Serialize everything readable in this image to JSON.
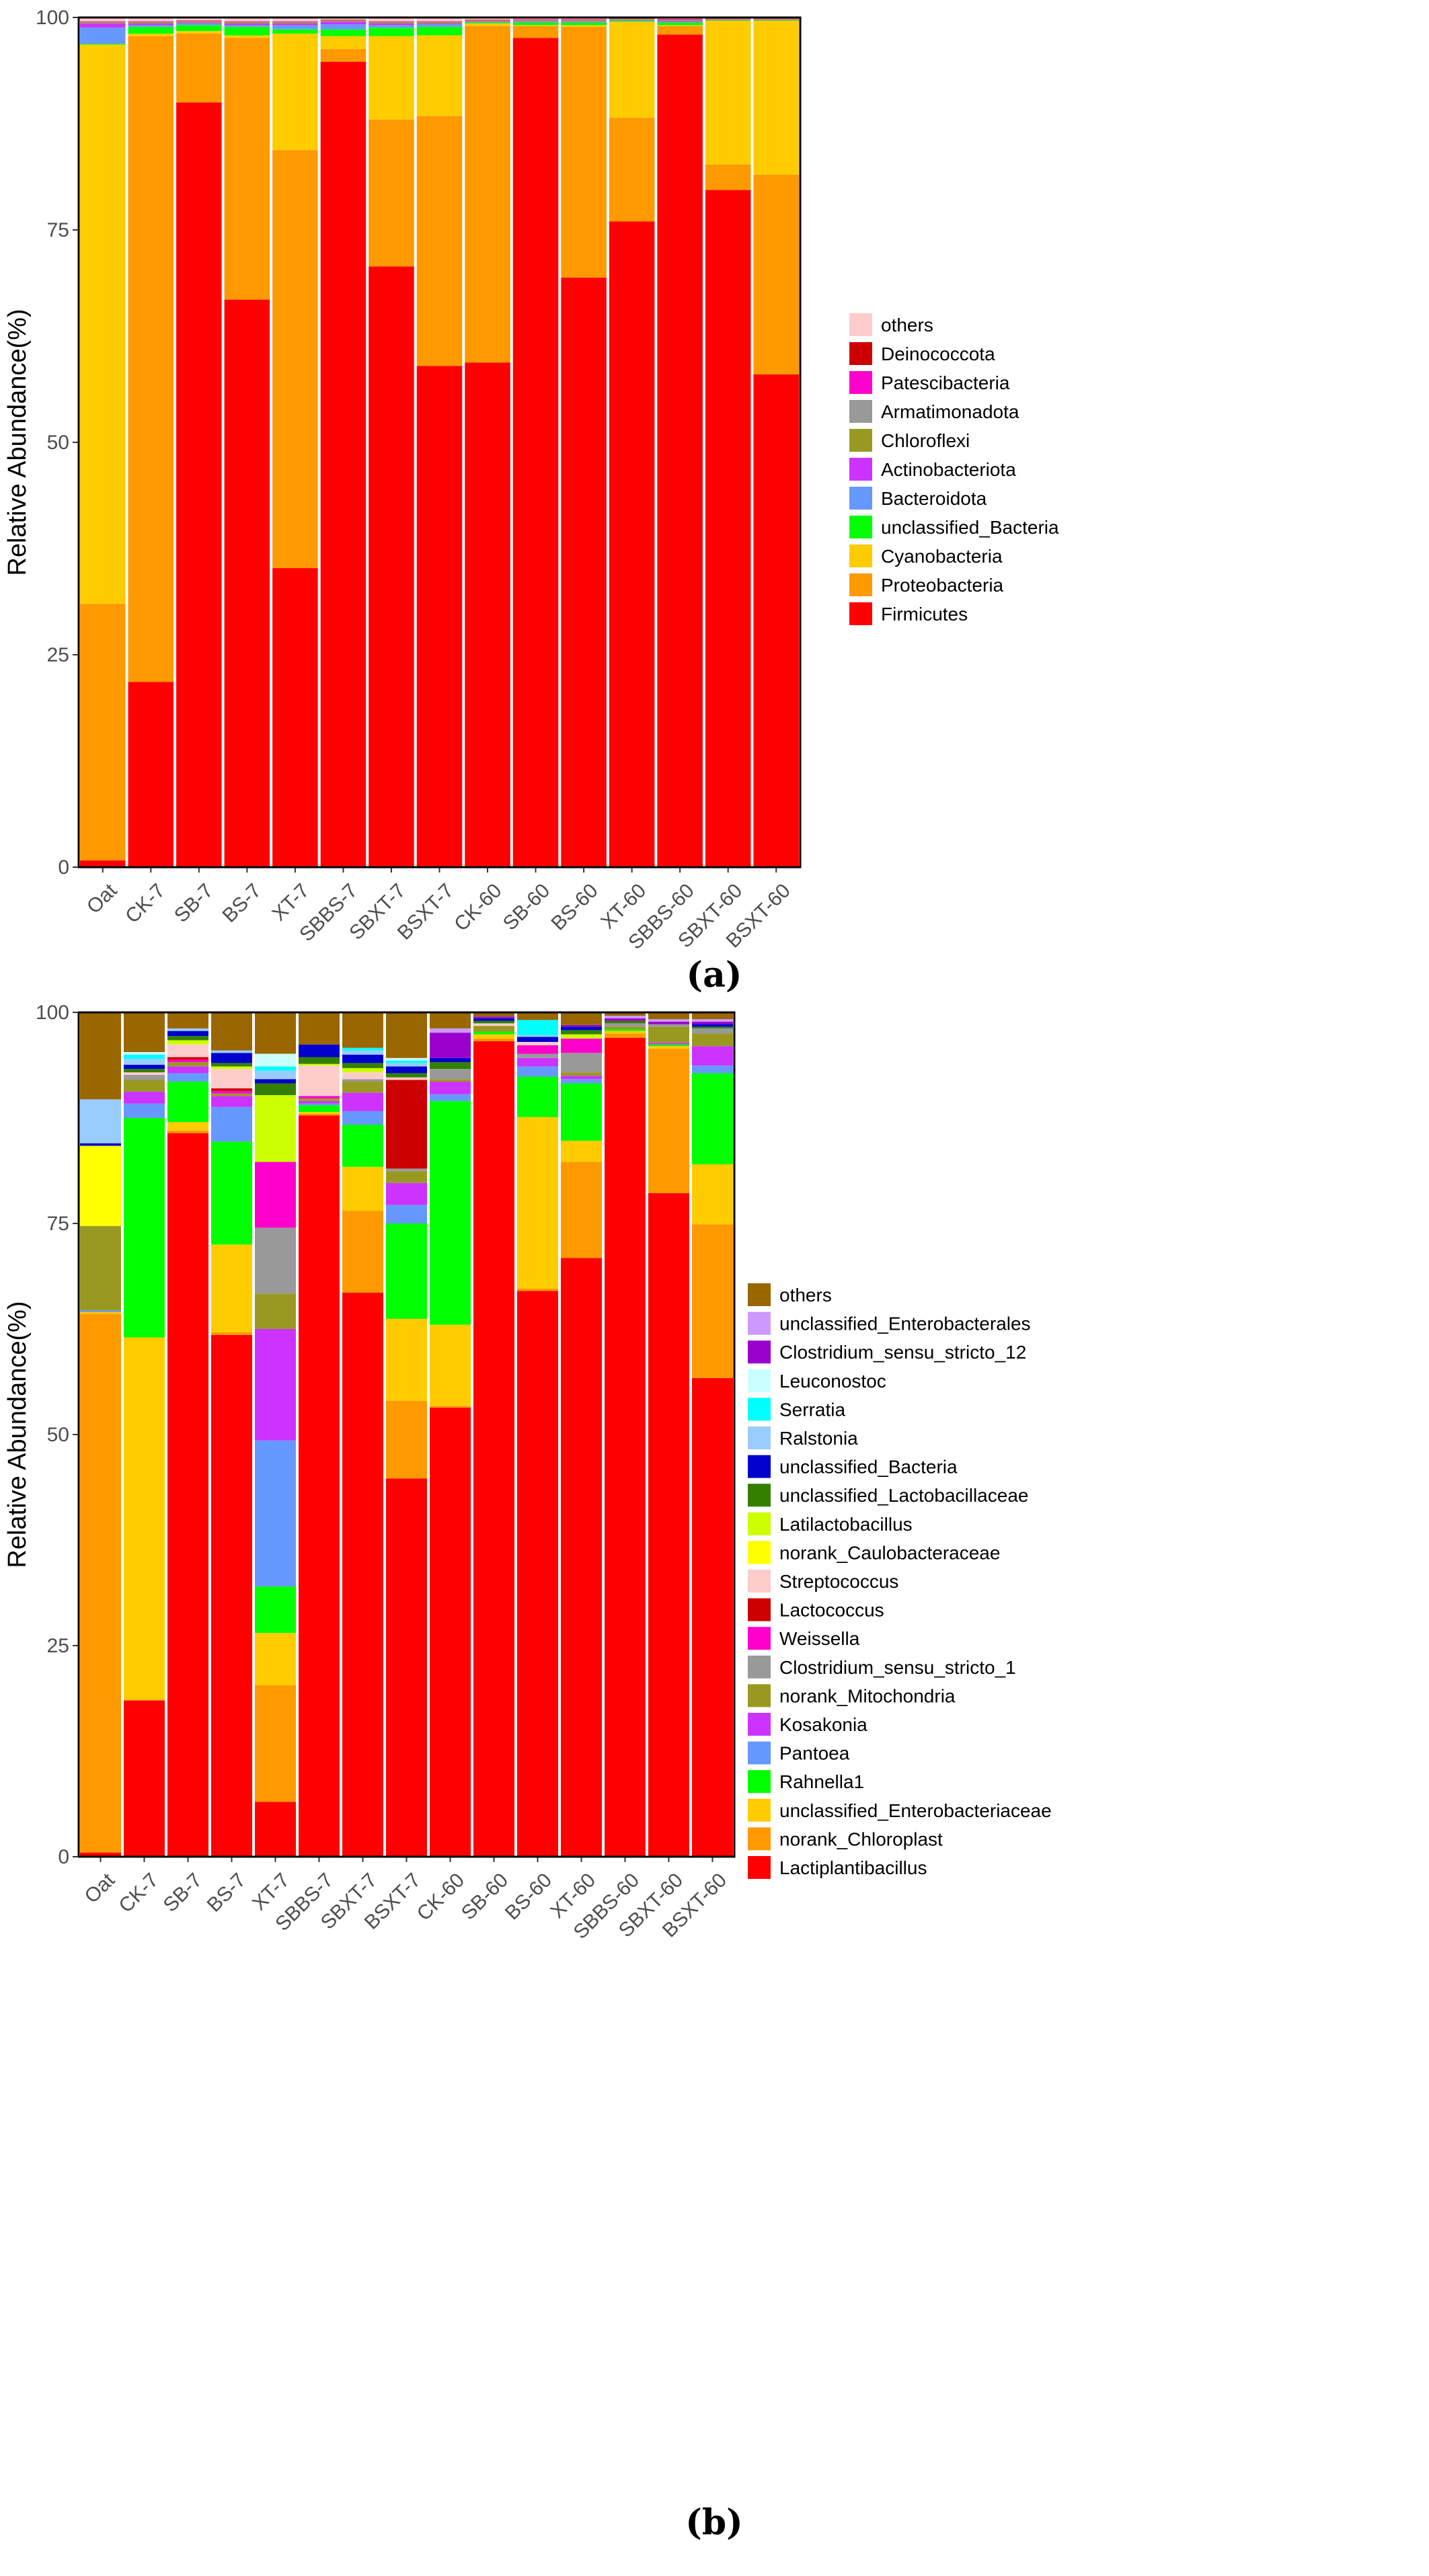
{
  "chart_data": [
    {
      "type": "bar",
      "stacked": true,
      "panel_label": "(a)",
      "title": "",
      "xlabel": "",
      "ylabel": "Relative Abundance(%)",
      "ylim": [
        0,
        100
      ],
      "yticks": [
        "0",
        "25",
        "50",
        "75",
        "100"
      ],
      "grid": false,
      "legend_position": "right",
      "categories": [
        "Oat",
        "CK-7",
        "SB-7",
        "BS-7",
        "XT-7",
        "SBBS-7",
        "SBXT-7",
        "BSXT-7",
        "CK-60",
        "SB-60",
        "BS-60",
        "XT-60",
        "SBBS-60",
        "SBXT-60",
        "BSXT-60"
      ],
      "series": [
        {
          "name": "Firmicutes",
          "color": "#FF0000",
          "values": [
            0.8,
            21.8,
            90,
            66.8,
            35.2,
            94.8,
            70.7,
            59,
            59.4,
            97.6,
            69.4,
            76,
            98,
            79.7,
            58
          ]
        },
        {
          "name": "Proteobacteria",
          "color": "#FF9900",
          "values": [
            30.2,
            76.0,
            8.1,
            30.8,
            49.2,
            1.5,
            17.3,
            29.4,
            39.6,
            1.4,
            29.5,
            12.2,
            1.0,
            3.0,
            23.5
          ]
        },
        {
          "name": "Cyanobacteria",
          "color": "#FFCC00",
          "values": [
            65.8,
            0.3,
            0.3,
            0.3,
            13.7,
            1.5,
            9.8,
            9.5,
            0.3,
            0.1,
            0.2,
            11.3,
            0.1,
            16.9,
            18.1
          ]
        },
        {
          "name": "unclassified_Bacteria",
          "color": "#00FF00",
          "values": [
            0.1,
            0.8,
            0.7,
            1.0,
            0.5,
            0.8,
            1.0,
            1.0,
            0.1,
            0.3,
            0.3,
            0.1,
            0.3,
            0.05,
            0.05
          ]
        },
        {
          "name": "Bacteroidota",
          "color": "#6699FF",
          "values": [
            1.9,
            0.2,
            0.2,
            0.2,
            0.5,
            0.6,
            0.3,
            0.3,
            0.05,
            0.1,
            0.1,
            0.05,
            0.1,
            0.02,
            0.02
          ]
        },
        {
          "name": "Actinobacteriota",
          "color": "#CC33FF",
          "values": [
            0.5,
            0.2,
            0.1,
            0.2,
            0.2,
            0.3,
            0.2,
            0.1,
            0.05,
            0.05,
            0.05,
            0.05,
            0.1,
            0.02,
            0.02
          ]
        },
        {
          "name": "Chloroflexi",
          "color": "#999922",
          "values": [
            0.1,
            0.1,
            0.1,
            0.1,
            0.1,
            0.1,
            0.1,
            0.1,
            0.1,
            0.1,
            0.1,
            0.1,
            0.1,
            0.1,
            0.1
          ]
        },
        {
          "name": "Armatimonadota",
          "color": "#999999",
          "values": [
            0.05,
            0.05,
            0.05,
            0.05,
            0.05,
            0.05,
            0.05,
            0.05,
            0.05,
            0.05,
            0.05,
            0.05,
            0.05,
            0.05,
            0.05
          ]
        },
        {
          "name": "Patescibacteria",
          "color": "#FF00CC",
          "values": [
            0.05,
            0.05,
            0.05,
            0.05,
            0.05,
            0.05,
            0.05,
            0.05,
            0.05,
            0.05,
            0.05,
            0.05,
            0.05,
            0.05,
            0.05
          ]
        },
        {
          "name": "Deinococcota",
          "color": "#CC0000",
          "values": [
            0.05,
            0.05,
            0.05,
            0.05,
            0.05,
            0.05,
            0.05,
            0.05,
            0.05,
            0.05,
            0.05,
            0.05,
            0.05,
            0.05,
            0.05
          ]
        },
        {
          "name": "others",
          "color": "#FFCCCC",
          "values": [
            0.45,
            0.45,
            0.35,
            0.45,
            0.45,
            0.25,
            0.45,
            0.45,
            0.25,
            0.2,
            0.2,
            0.05,
            0.15,
            0.06,
            0.06
          ]
        }
      ]
    },
    {
      "type": "bar",
      "stacked": true,
      "panel_label": "(b)",
      "title": "",
      "xlabel": "",
      "ylabel": "Relative Abundance(%)",
      "ylim": [
        0,
        100
      ],
      "yticks": [
        "0",
        "25",
        "50",
        "75",
        "100"
      ],
      "grid": false,
      "legend_position": "right",
      "categories": [
        "Oat",
        "CK-7",
        "SB-7",
        "BS-7",
        "XT-7",
        "SBBS-7",
        "SBXT-7",
        "BSXT-7",
        "CK-60",
        "SB-60",
        "BS-60",
        "XT-60",
        "SBBS-60",
        "SBXT-60",
        "BSXT-60"
      ],
      "series": [
        {
          "name": "Lactiplantibacillus",
          "color": "#FF0000",
          "values": [
            0.5,
            18.5,
            85.7,
            61.8,
            6.5,
            87.8,
            66.8,
            44.8,
            53.2,
            96.6,
            67,
            70.9,
            97,
            78.6,
            56.7
          ]
        },
        {
          "name": "norank_Chloroplast",
          "color": "#FF9900",
          "values": [
            63.8,
            0.1,
            0.3,
            0.3,
            13.8,
            0.2,
            9.7,
            9.2,
            0.2,
            0.3,
            0.3,
            11.4,
            0.5,
            17.1,
            18.2
          ]
        },
        {
          "name": "unclassified_Enterobacteriaceae",
          "color": "#FFCC00",
          "values": [
            0.2,
            42.9,
            1.0,
            10.4,
            6.2,
            0.2,
            5.2,
            9.7,
            9.6,
            0.5,
            20.3,
            2.5,
            0.3,
            0.3,
            7.1
          ]
        },
        {
          "name": "Rahnella1",
          "color": "#00FF00",
          "values": [
            0,
            26,
            4.8,
            12.2,
            5.5,
            0.8,
            5,
            11.3,
            26.5,
            0.3,
            4.8,
            6.8,
            0.2,
            0.2,
            10.8
          ]
        },
        {
          "name": "Pantoea",
          "color": "#6699FF",
          "values": [
            0.2,
            1.7,
            1.0,
            4.1,
            17.3,
            0.2,
            1.6,
            2.2,
            0.8,
            0,
            1.2,
            0.5,
            0,
            0,
            0.9
          ]
        },
        {
          "name": "Kosakonia",
          "color": "#CC33FF",
          "values": [
            0,
            1.4,
            0.8,
            1.3,
            13.2,
            0.3,
            2.2,
            2.6,
            1.5,
            0,
            1.0,
            0.4,
            0,
            0.2,
            2.3
          ]
        },
        {
          "name": "norank_Mitochondria",
          "color": "#999922",
          "values": [
            10,
            1.4,
            0.5,
            0.3,
            4.2,
            0.3,
            1.3,
            1.4,
            0.3,
            0.7,
            0,
            0.4,
            0.3,
            1.9,
            1.5
          ]
        },
        {
          "name": "Clostridium_sensu_stricto_1",
          "color": "#999999",
          "values": [
            0,
            0.6,
            0,
            0,
            7.8,
            0,
            0.3,
            0.3,
            1.2,
            0,
            0.5,
            2.3,
            0.4,
            0.3,
            0.6
          ]
        },
        {
          "name": "Weissella",
          "color": "#FF00CC",
          "values": [
            0,
            0,
            0.3,
            0.3,
            7.8,
            0.3,
            0,
            0,
            0,
            0,
            1.0,
            1.7,
            0,
            0,
            0
          ]
        },
        {
          "name": "Lactococcus",
          "color": "#CC0000",
          "values": [
            0,
            0,
            0.3,
            0.3,
            0,
            0,
            0,
            10.5,
            0,
            0,
            0,
            0,
            0,
            0,
            0
          ]
        },
        {
          "name": "Streptococcus",
          "color": "#FFCCCC",
          "values": [
            0,
            0.3,
            1.5,
            2.3,
            0,
            3.6,
            0.8,
            0.3,
            0,
            0.3,
            0.4,
            0,
            0,
            0,
            0
          ]
        },
        {
          "name": "norank_Caulobacteraceae",
          "color": "#FFFF00",
          "values": [
            9.5,
            0,
            0,
            0,
            0,
            0,
            0,
            0,
            0,
            0,
            0,
            0,
            0,
            0,
            0
          ]
        },
        {
          "name": "Latilactobacillus",
          "color": "#CCFF00",
          "values": [
            0,
            0,
            0.5,
            0.3,
            7.9,
            0.2,
            0.5,
            0,
            0,
            0,
            0,
            0.5,
            0,
            0,
            0
          ]
        },
        {
          "name": "unclassified_Lactobacillaceae",
          "color": "#338000",
          "values": [
            0,
            0.4,
            0.5,
            0.4,
            1.4,
            0.8,
            0.6,
            0.5,
            0.8,
            0.3,
            0,
            0.5,
            0.3,
            0,
            0.2
          ]
        },
        {
          "name": "unclassified_Bacteria",
          "color": "#0000CC",
          "values": [
            0.3,
            0.5,
            0.6,
            1.2,
            0.5,
            1.5,
            1.0,
            0.8,
            0.5,
            0.3,
            0.6,
            0.4,
            0,
            0,
            0.3
          ]
        },
        {
          "name": "Ralstonia",
          "color": "#99CCFF",
          "values": [
            5.2,
            0.7,
            0.3,
            0.3,
            1.0,
            0,
            0.5,
            0.4,
            0,
            0,
            0.2,
            0,
            0,
            0,
            0
          ]
        },
        {
          "name": "Serratia",
          "color": "#00FFFF",
          "values": [
            0,
            0.5,
            0,
            0,
            0.5,
            0,
            0.3,
            0.3,
            0,
            0,
            1.8,
            0,
            0,
            0,
            0
          ]
        },
        {
          "name": "Leuconostoc",
          "color": "#CCFFFF",
          "values": [
            0,
            0.3,
            0,
            0,
            1.5,
            0,
            0,
            0.3,
            0,
            0,
            0,
            0,
            0,
            0,
            0
          ]
        },
        {
          "name": "Clostridium_sensu_stricto_12",
          "color": "#9900CC",
          "values": [
            0,
            0,
            0,
            0,
            0,
            0,
            0,
            0,
            3,
            0.2,
            0,
            0.2,
            0.3,
            0.3,
            0.3
          ]
        },
        {
          "name": "unclassified_Enterobacterales",
          "color": "#CC99FF",
          "values": [
            0,
            0,
            0,
            0,
            0,
            0,
            0,
            0,
            0.5,
            0,
            0,
            0,
            0.3,
            0.3,
            0.3
          ]
        },
        {
          "name": "others",
          "color": "#996600",
          "values": [
            10.3,
            4.7,
            1.9,
            4.5,
            4.9,
            3.8,
            4.2,
            5.4,
            1.9,
            0.5,
            0.9,
            1.5,
            0.4,
            0.8,
            0.8
          ]
        }
      ]
    }
  ]
}
